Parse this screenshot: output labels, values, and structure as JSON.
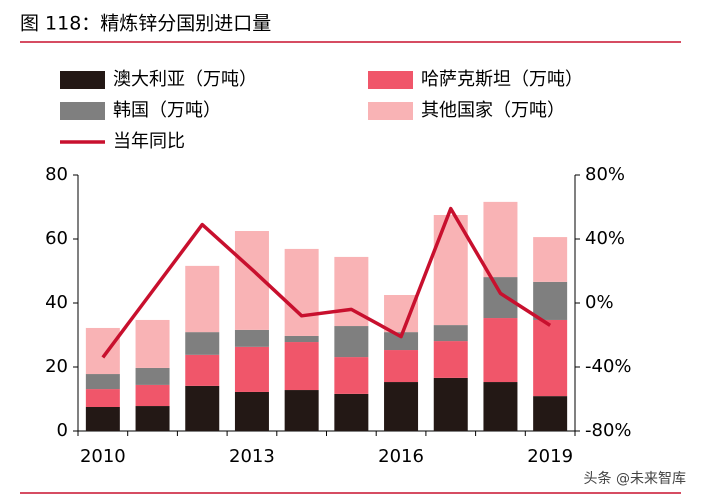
{
  "chart_data": {
    "type": "bar",
    "title": "图 118：精炼锌分国别进口量",
    "categories": [
      "2010",
      null,
      null,
      "2013",
      null,
      null,
      "2016",
      null,
      null,
      "2019"
    ],
    "series": [
      {
        "name": "澳大利亚（万吨）",
        "color": "#231815",
        "values": [
          7.5,
          7.8,
          14.1,
          12.2,
          12.8,
          11.6,
          15.3,
          16.6,
          15.3,
          10.9
        ]
      },
      {
        "name": "哈萨克斯坦（万吨）",
        "color": "#f0566a",
        "values": [
          5.6,
          6.6,
          9.7,
          14.1,
          15,
          11.5,
          10,
          11.5,
          20,
          23.8
        ]
      },
      {
        "name": "韩国（万吨）",
        "color": "#7f7f7f",
        "values": [
          4.7,
          5.3,
          7.1,
          5.3,
          1.9,
          9.7,
          5.6,
          5,
          12.8,
          11.9
        ]
      },
      {
        "name": "其他国家（万吨）",
        "color": "#f9b3b5",
        "values": [
          14.4,
          15,
          20.7,
          30.9,
          27.2,
          21.6,
          11.6,
          34.4,
          23.5,
          14
        ]
      },
      {
        "name": "当年同比",
        "color": "#c8102e",
        "type": "line",
        "axis": "y2",
        "values": [
          -34,
          7.5,
          49,
          21,
          -8,
          -4,
          -21,
          59,
          6,
          -14
        ]
      }
    ],
    "ylim": [
      0,
      80
    ],
    "yticks": [
      0,
      20,
      40,
      60,
      80
    ],
    "y2lim": [
      -80,
      80
    ],
    "y2ticks": [
      {
        "value": -80,
        "label": "-80%"
      },
      {
        "value": -40,
        "label": "-40%"
      },
      {
        "value": 0,
        "label": "0%"
      },
      {
        "value": 40,
        "label": "40%"
      },
      {
        "value": 80,
        "label": "80%"
      }
    ],
    "stacked": true,
    "watermark": "头条 @未来智库"
  }
}
